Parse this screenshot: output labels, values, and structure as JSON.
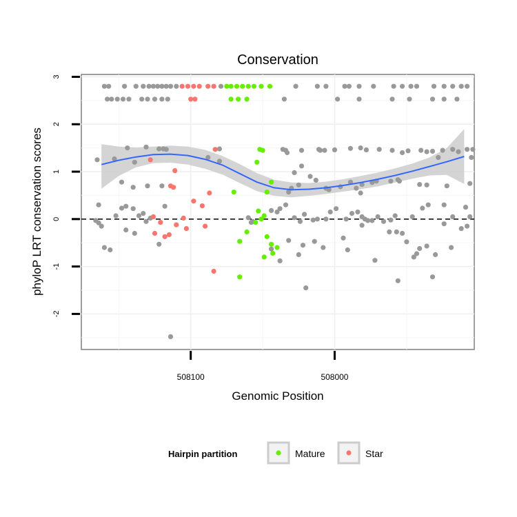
{
  "chart_data": {
    "type": "scatter",
    "title": "Conservation",
    "xlabel": "Genomic Position",
    "ylabel": "phyloP LRT conservation scores",
    "x_reversed": true,
    "xlim": [
      508176,
      507903
    ],
    "ylim": [
      -2.75,
      3.05
    ],
    "x_ticks": [
      508100,
      508000
    ],
    "y_ticks": [
      -2,
      -1,
      0,
      1,
      2,
      3
    ],
    "reference_line": {
      "y": 0,
      "style": "dashed"
    },
    "grid": true,
    "legend": {
      "title": "Hairpin partition",
      "position": "bottom",
      "entries": [
        {
          "label": "Mature",
          "color": "#66ee00"
        },
        {
          "label": "Star",
          "color": "#f8766d"
        }
      ]
    },
    "colors": {
      "other": "#999999",
      "mature": "#66ee00",
      "star": "#f8766d",
      "smooth": "#3366ff",
      "band": "#cccccc"
    },
    "smooth": {
      "x": [
        508162,
        508150,
        508138,
        508126,
        508114,
        508102,
        508090,
        508078,
        508066,
        508054,
        508042,
        508030,
        508018,
        508006,
        507994,
        507982,
        507970,
        507958,
        507946,
        507934,
        507922,
        507910
      ],
      "y": [
        1.15,
        1.24,
        1.31,
        1.36,
        1.37,
        1.34,
        1.26,
        1.14,
        0.96,
        0.78,
        0.66,
        0.62,
        0.63,
        0.66,
        0.71,
        0.77,
        0.84,
        0.92,
        1.01,
        1.11,
        1.21,
        1.32
      ],
      "upper": [
        1.58,
        1.53,
        1.51,
        1.53,
        1.55,
        1.53,
        1.46,
        1.33,
        1.16,
        0.97,
        0.83,
        0.77,
        0.76,
        0.79,
        0.84,
        0.91,
        0.98,
        1.07,
        1.17,
        1.3,
        1.5,
        1.9
      ],
      "lower": [
        0.64,
        0.91,
        1.09,
        1.18,
        1.19,
        1.15,
        1.06,
        0.94,
        0.76,
        0.59,
        0.49,
        0.46,
        0.49,
        0.53,
        0.58,
        0.63,
        0.69,
        0.77,
        0.85,
        0.92,
        0.93,
        0.74
      ]
    },
    "series": [
      {
        "name": "Mature",
        "points": [
          [
            508075,
            2.8
          ],
          [
            508072,
            2.8
          ],
          [
            508068,
            2.8
          ],
          [
            508064,
            2.8
          ],
          [
            508060,
            2.8
          ],
          [
            508056,
            2.8
          ],
          [
            508051,
            2.8
          ],
          [
            508045,
            2.8
          ],
          [
            508072,
            2.53
          ],
          [
            508067,
            2.53
          ],
          [
            508061,
            2.53
          ],
          [
            508052,
            1.47
          ],
          [
            508050,
            1.45
          ],
          [
            508054,
            1.2
          ],
          [
            508044,
            0.78
          ],
          [
            508047,
            0.57
          ],
          [
            508070,
            0.57
          ],
          [
            508053,
            0.17
          ],
          [
            508049,
            0.07
          ],
          [
            508051,
            0.0
          ],
          [
            508055,
            -0.07
          ],
          [
            508061,
            -0.27
          ],
          [
            508066,
            -0.47
          ],
          [
            508047,
            -0.37
          ],
          [
            508044,
            -0.53
          ],
          [
            508040,
            -0.6
          ],
          [
            508043,
            -0.72
          ],
          [
            508049,
            -0.8
          ],
          [
            508066,
            -1.22
          ]
        ]
      },
      {
        "name": "Star",
        "points": [
          [
            508106,
            2.8
          ],
          [
            508102,
            2.8
          ],
          [
            508098,
            2.8
          ],
          [
            508094,
            2.8
          ],
          [
            508088,
            2.8
          ],
          [
            508084,
            2.8
          ],
          [
            508100,
            2.53
          ],
          [
            508097,
            2.53
          ],
          [
            508083,
            1.47
          ],
          [
            508128,
            1.25
          ],
          [
            508111,
            1.02
          ],
          [
            508114,
            0.7
          ],
          [
            508112,
            0.67
          ],
          [
            508087,
            0.55
          ],
          [
            508098,
            0.38
          ],
          [
            508092,
            0.28
          ],
          [
            508126,
            0.05
          ],
          [
            508105,
            0.02
          ],
          [
            508121,
            -0.07
          ],
          [
            508110,
            -0.12
          ],
          [
            508090,
            -0.15
          ],
          [
            508103,
            -0.2
          ],
          [
            508125,
            -0.3
          ],
          [
            508118,
            -0.37
          ],
          [
            508115,
            -0.33
          ],
          [
            508084,
            -1.1
          ]
        ]
      },
      {
        "name": "",
        "points": [
          [
            508160,
            2.8
          ],
          [
            508157,
            2.8
          ],
          [
            508146,
            2.8
          ],
          [
            508138,
            2.8
          ],
          [
            508133,
            2.8
          ],
          [
            508129,
            2.8
          ],
          [
            508126,
            2.8
          ],
          [
            508123,
            2.8
          ],
          [
            508120,
            2.8
          ],
          [
            508117,
            2.8
          ],
          [
            508114,
            2.8
          ],
          [
            508110,
            2.8
          ],
          [
            508079,
            2.8
          ],
          [
            507990,
            2.8
          ],
          [
            507983,
            2.8
          ],
          [
            507973,
            2.8
          ],
          [
            507959,
            2.8
          ],
          [
            507953,
            2.8
          ],
          [
            507947,
            2.8
          ],
          [
            507943,
            2.8
          ],
          [
            507931,
            2.8
          ],
          [
            507924,
            2.8
          ],
          [
            507918,
            2.8
          ],
          [
            507912,
            2.8
          ],
          [
            507908,
            2.8
          ],
          [
            508027,
            2.8
          ],
          [
            508012,
            2.8
          ],
          [
            508006,
            2.8
          ],
          [
            507993,
            2.8
          ],
          [
            508158,
            2.53
          ],
          [
            508155,
            2.53
          ],
          [
            508151,
            2.53
          ],
          [
            508147,
            2.53
          ],
          [
            508143,
            2.53
          ],
          [
            508134,
            2.53
          ],
          [
            508130,
            2.53
          ],
          [
            508125,
            2.53
          ],
          [
            508120,
            2.53
          ],
          [
            508116,
            2.53
          ],
          [
            508035,
            2.53
          ],
          [
            507998,
            2.53
          ],
          [
            507983,
            2.53
          ],
          [
            507960,
            2.53
          ],
          [
            507948,
            2.53
          ],
          [
            507932,
            2.53
          ],
          [
            507924,
            2.53
          ],
          [
            507915,
            2.53
          ],
          [
            508165,
            1.25
          ],
          [
            508153,
            1.27
          ],
          [
            508144,
            1.5
          ],
          [
            508139,
            1.2
          ],
          [
            508131,
            1.52
          ],
          [
            508122,
            1.48
          ],
          [
            508119,
            1.48
          ],
          [
            508117,
            1.47
          ],
          [
            508080,
            1.48
          ],
          [
            508036,
            1.47
          ],
          [
            508034,
            1.45
          ],
          [
            508010,
            1.45
          ],
          [
            508007,
            1.45
          ],
          [
            507989,
            1.49
          ],
          [
            507982,
            1.5
          ],
          [
            507978,
            1.46
          ],
          [
            507969,
            1.47
          ],
          [
            507960,
            1.45
          ],
          [
            507953,
            1.4
          ],
          [
            507949,
            1.44
          ],
          [
            507940,
            1.45
          ],
          [
            507936,
            1.42
          ],
          [
            507925,
            1.45
          ],
          [
            507918,
            1.47
          ],
          [
            507908,
            1.47
          ],
          [
            507904,
            1.47
          ],
          [
            508011,
            1.47
          ],
          [
            508023,
            1.45
          ],
          [
            508000,
            1.46
          ],
          [
            507932,
            1.43
          ],
          [
            507914,
            1.42
          ],
          [
            507928,
            1.3
          ],
          [
            507905,
            1.3
          ],
          [
            508033,
            1.4
          ],
          [
            508088,
            1.3
          ],
          [
            508080,
            1.22
          ],
          [
            508028,
            0.98
          ],
          [
            508017,
            0.9
          ],
          [
            508023,
            1.12
          ],
          [
            508013,
            0.82
          ],
          [
            507989,
            0.78
          ],
          [
            507985,
            0.65
          ],
          [
            507981,
            0.73
          ],
          [
            507974,
            0.77
          ],
          [
            507971,
            0.8
          ],
          [
            507961,
            0.8
          ],
          [
            507956,
            0.83
          ],
          [
            507955,
            0.8
          ],
          [
            508025,
            0.72
          ],
          [
            508030,
            0.65
          ],
          [
            508032,
            0.57
          ],
          [
            508006,
            0.65
          ],
          [
            508004,
            0.62
          ],
          [
            507996,
            0.68
          ],
          [
            507982,
            0.55
          ],
          [
            507941,
            0.73
          ],
          [
            507936,
            0.72
          ],
          [
            507922,
            0.7
          ],
          [
            507909,
            0.25
          ],
          [
            507906,
            0.75
          ],
          [
            508148,
            0.78
          ],
          [
            508140,
            0.67
          ],
          [
            508130,
            0.7
          ],
          [
            508120,
            0.7
          ],
          [
            508164,
            0.3
          ],
          [
            508152,
            0.07
          ],
          [
            508148,
            0.23
          ],
          [
            508145,
            0.27
          ],
          [
            508140,
            0.22
          ],
          [
            508136,
            0.07
          ],
          [
            508133,
            0.12
          ],
          [
            508131,
            -0.05
          ],
          [
            508128,
            0.02
          ],
          [
            508118,
            0.27
          ],
          [
            508060,
            0.03
          ],
          [
            508058,
            -0.07
          ],
          [
            508057,
            -0.05
          ],
          [
            508044,
            0.18
          ],
          [
            508040,
            0.15
          ],
          [
            508038,
            0.22
          ],
          [
            508034,
            0.3
          ],
          [
            508028,
            0.03
          ],
          [
            508024,
            -0.05
          ],
          [
            508021,
            0.1
          ],
          [
            508015,
            -0.02
          ],
          [
            508012,
            0.0
          ],
          [
            508006,
            0.0
          ],
          [
            508003,
            0.15
          ],
          [
            507999,
            0.22
          ],
          [
            507992,
            0.0
          ],
          [
            507988,
            0.12
          ],
          [
            507984,
            0.15
          ],
          [
            507981,
            0.05
          ],
          [
            507979,
            0.0
          ],
          [
            507974,
            -0.03
          ],
          [
            507970,
            0.05
          ],
          [
            507966,
            -0.05
          ],
          [
            507961,
            -0.02
          ],
          [
            507958,
            0.07
          ],
          [
            507946,
            0.05
          ],
          [
            507939,
            0.23
          ],
          [
            507935,
            0.3
          ],
          [
            507924,
            0.3
          ],
          [
            507918,
            0.05
          ],
          [
            507906,
            0.05
          ],
          [
            508166,
            -0.03
          ],
          [
            508164,
            -0.08
          ],
          [
            508162,
            -0.15
          ],
          [
            508160,
            -0.6
          ],
          [
            508156,
            -0.65
          ],
          [
            508145,
            -0.23
          ],
          [
            508139,
            -0.3
          ],
          [
            508122,
            -0.53
          ],
          [
            508044,
            -0.63
          ],
          [
            508038,
            -0.88
          ],
          [
            508032,
            -0.45
          ],
          [
            508025,
            -0.75
          ],
          [
            508022,
            -0.55
          ],
          [
            508014,
            -0.47
          ],
          [
            508008,
            -0.6
          ],
          [
            507994,
            -0.4
          ],
          [
            507991,
            -0.65
          ],
          [
            507981,
            -0.13
          ],
          [
            507977,
            -0.03
          ],
          [
            507972,
            -0.87
          ],
          [
            507962,
            -0.27
          ],
          [
            507957,
            -0.27
          ],
          [
            507953,
            -0.3
          ],
          [
            507950,
            -0.48
          ],
          [
            507945,
            -0.8
          ],
          [
            507943,
            -0.73
          ],
          [
            507941,
            -0.62
          ],
          [
            507936,
            -0.57
          ],
          [
            507932,
            -1.22
          ],
          [
            507930,
            -0.75
          ],
          [
            507924,
            -0.1
          ],
          [
            507919,
            -0.6
          ],
          [
            507912,
            -0.2
          ],
          [
            507908,
            -0.15
          ],
          [
            508020,
            -1.45
          ],
          [
            507956,
            -1.3
          ],
          [
            508114,
            -2.48
          ]
        ]
      }
    ]
  }
}
